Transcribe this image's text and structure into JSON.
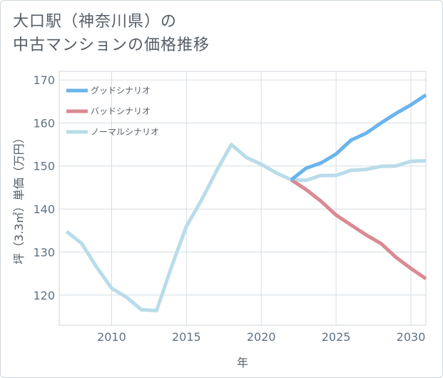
{
  "title": {
    "line1": "大口駅（神奈川県）の",
    "line2": "中古マンションの価格推移"
  },
  "chart_data": {
    "type": "line",
    "title": "大口駅（神奈川県）の中古マンションの価格推移",
    "xlabel": "年",
    "ylabel": "坪（3.3㎡）単価（万円）",
    "xlim": [
      2006.5,
      2031
    ],
    "ylim": [
      113,
      172
    ],
    "xticks": [
      2010,
      2015,
      2020,
      2025,
      2030
    ],
    "yticks": [
      120,
      130,
      140,
      150,
      160,
      170
    ],
    "grid": true,
    "legend_position": "top-left",
    "series": [
      {
        "name": "グッドシナリオ",
        "color": "#6ab4ec",
        "x": [
          2022,
          2023,
          2024,
          2025,
          2026,
          2027,
          2028,
          2029,
          2030,
          2031
        ],
        "values": [
          146.8,
          149.5,
          150.7,
          152.8,
          156.0,
          157.6,
          160.0,
          162.2,
          164.2,
          166.5
        ]
      },
      {
        "name": "バッドシナリオ",
        "color": "#d98a92",
        "x": [
          2022,
          2023,
          2024,
          2025,
          2026,
          2027,
          2028,
          2029,
          2030,
          2031
        ],
        "values": [
          146.8,
          144.5,
          141.8,
          138.6,
          136.3,
          134.0,
          132.0,
          128.8,
          126.2,
          123.8
        ]
      },
      {
        "name": "ノーマルシナリオ",
        "color": "#b9dcea",
        "x": [
          2007,
          2008,
          2009,
          2010,
          2011,
          2012,
          2013,
          2014,
          2015,
          2016,
          2017,
          2018,
          2019,
          2020,
          2021,
          2022,
          2023,
          2024,
          2025,
          2026,
          2027,
          2028,
          2029,
          2030,
          2031
        ],
        "values": [
          134.8,
          132.0,
          126.5,
          121.6,
          119.5,
          116.6,
          116.4,
          126.5,
          136.0,
          142.0,
          148.8,
          155.0,
          152.0,
          150.4,
          148.4,
          146.8,
          146.7,
          147.8,
          147.8,
          149.0,
          149.2,
          149.9,
          150.0,
          151.1,
          151.2
        ]
      }
    ]
  }
}
